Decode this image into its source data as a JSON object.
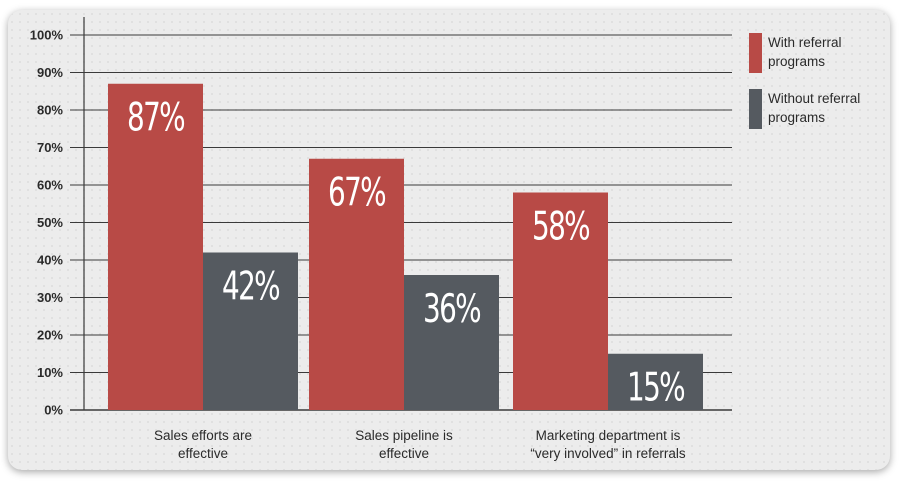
{
  "chart_data": {
    "type": "bar",
    "categories": [
      "Sales efforts are effective",
      "Sales pipeline is effective",
      "Marketing department is “very involved” in referrals"
    ],
    "category_lines": [
      [
        "Sales efforts are",
        "effective"
      ],
      [
        "Sales pipeline is",
        "effective"
      ],
      [
        "Marketing department is",
        "“very involved” in referrals"
      ]
    ],
    "series": [
      {
        "name": "With referral programs",
        "values": [
          87,
          67,
          58
        ],
        "labels": [
          "87%",
          "67%",
          "58%"
        ],
        "color": "#b84a46"
      },
      {
        "name": "Without referral programs",
        "values": [
          42,
          36,
          15
        ],
        "labels": [
          "42%",
          "36%",
          "15%"
        ],
        "color": "#555a60"
      }
    ],
    "ylim": [
      0,
      100
    ],
    "yticks": [
      "0%",
      "10%",
      "20%",
      "30%",
      "40%",
      "50%",
      "60%",
      "70%",
      "80%",
      "90%",
      "100%"
    ],
    "grid": true,
    "legend_position": "right",
    "title": "",
    "xlabel": "",
    "ylabel": ""
  },
  "legend": {
    "items": [
      {
        "line1": "With referral",
        "line2": "programs",
        "color": "#b84a46"
      },
      {
        "line1": "Without referral",
        "line2": "programs",
        "color": "#555a60"
      }
    ]
  }
}
